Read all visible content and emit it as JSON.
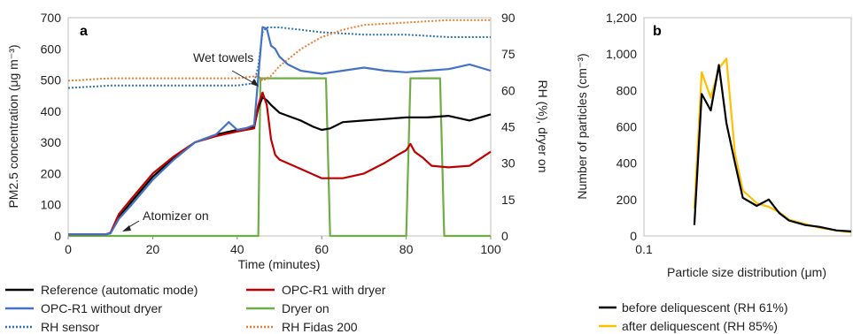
{
  "chart_data": [
    {
      "panel": "a",
      "type": "line",
      "xlabel": "Time (minutes)",
      "ylabel": "PM2.5 concentration (μg m⁻³)",
      "y2label": "RH (%), dryer on",
      "xlim": [
        0,
        100
      ],
      "ylim": [
        0,
        700
      ],
      "y2lim": [
        0,
        90
      ],
      "xticks": [
        "0",
        "20",
        "40",
        "60",
        "80",
        "100"
      ],
      "yticks": [
        "0",
        "100",
        "200",
        "300",
        "400",
        "500",
        "600",
        "700"
      ],
      "y2ticks": [
        "0",
        "15",
        "30",
        "45",
        "60",
        "75",
        "90"
      ],
      "annotations": [
        "Wet towels",
        "Atomizer on"
      ],
      "series": [
        {
          "name": "Reference (automatic mode)",
          "axis": "left",
          "color": "#000000",
          "style": "solid",
          "x": [
            0,
            9,
            10,
            12,
            15,
            20,
            25,
            30,
            35,
            40,
            44,
            45,
            46,
            47,
            48,
            50,
            52,
            55,
            58,
            60,
            62,
            65,
            70,
            75,
            80,
            85,
            90,
            95,
            100
          ],
          "y": [
            5,
            5,
            10,
            60,
            110,
            190,
            250,
            300,
            325,
            340,
            350,
            410,
            445,
            435,
            420,
            395,
            385,
            370,
            350,
            340,
            345,
            365,
            370,
            375,
            380,
            380,
            385,
            370,
            390
          ]
        },
        {
          "name": "OPC-R1 with dryer",
          "axis": "left",
          "color": "#c00000",
          "style": "solid",
          "x": [
            0,
            9,
            10,
            12,
            15,
            20,
            25,
            30,
            35,
            40,
            44,
            45,
            46,
            47,
            48,
            49,
            50,
            55,
            60,
            65,
            70,
            75,
            78,
            80,
            81,
            82,
            84,
            86,
            90,
            95,
            100
          ],
          "y": [
            5,
            5,
            10,
            70,
            120,
            200,
            255,
            300,
            320,
            335,
            345,
            420,
            460,
            420,
            310,
            260,
            245,
            215,
            185,
            185,
            200,
            235,
            260,
            275,
            295,
            270,
            250,
            225,
            220,
            225,
            270
          ]
        },
        {
          "name": "OPC-R1 without dryer",
          "axis": "left",
          "color": "#4472c4",
          "style": "solid",
          "x": [
            0,
            9,
            10,
            12,
            15,
            20,
            25,
            30,
            35,
            38,
            40,
            42,
            44,
            45,
            46,
            47,
            48,
            49,
            50,
            52,
            55,
            60,
            65,
            70,
            75,
            80,
            85,
            90,
            95,
            100
          ],
          "y": [
            5,
            5,
            8,
            55,
            100,
            180,
            245,
            300,
            325,
            365,
            340,
            345,
            355,
            510,
            670,
            665,
            610,
            600,
            575,
            550,
            530,
            520,
            530,
            540,
            530,
            525,
            530,
            535,
            550,
            530
          ]
        },
        {
          "name": "Dryer on",
          "axis": "right",
          "color": "#70ad47",
          "style": "solid",
          "x": [
            0,
            45,
            45.5,
            47,
            61,
            62,
            80,
            81,
            88,
            89,
            100
          ],
          "y": [
            0,
            0,
            65,
            65,
            65,
            0,
            0,
            65,
            65,
            0,
            0
          ]
        },
        {
          "name": "RH sensor",
          "axis": "right",
          "color": "#2e75b6",
          "style": "dotted",
          "x": [
            0,
            10,
            20,
            30,
            40,
            44,
            45,
            46,
            47,
            50,
            55,
            60,
            70,
            80,
            90,
            100
          ],
          "y": [
            61,
            62,
            62,
            62,
            62,
            63,
            70,
            84,
            86,
            86,
            85,
            84,
            83,
            83,
            82,
            82
          ]
        },
        {
          "name": "RH Fidas 200",
          "axis": "right",
          "color": "#ed7d31",
          "style": "dotted",
          "x": [
            0,
            10,
            20,
            30,
            40,
            45,
            46,
            48,
            50,
            55,
            60,
            65,
            70,
            80,
            90,
            100
          ],
          "y": [
            64,
            65,
            65,
            65,
            65,
            66,
            64,
            66,
            70,
            77,
            82,
            85,
            87,
            88,
            89,
            89
          ]
        }
      ]
    },
    {
      "panel": "b",
      "type": "line",
      "xlabel": "Particle size distribution (μm)",
      "ylabel": "Number of particles (cm⁻³)",
      "xscale": "log",
      "xlim": [
        0.1,
        1
      ],
      "ylim": [
        0,
        1200
      ],
      "xticks": [
        "0.1"
      ],
      "yticks": [
        "0",
        "200",
        "400",
        "600",
        "800",
        "1,000",
        "1,200"
      ],
      "series": [
        {
          "name": "before deliquescent (RH 61%)",
          "color": "#000000",
          "x": [
            0.175,
            0.19,
            0.21,
            0.23,
            0.25,
            0.275,
            0.3,
            0.35,
            0.4,
            0.45,
            0.5,
            0.6,
            0.7,
            0.85,
            1.0
          ],
          "y": [
            60,
            780,
            690,
            940,
            620,
            400,
            210,
            165,
            200,
            125,
            85,
            60,
            50,
            30,
            25
          ]
        },
        {
          "name": "after deliquescent (RH 85%)",
          "color": "#ffc000",
          "x": [
            0.175,
            0.19,
            0.21,
            0.23,
            0.25,
            0.275,
            0.3,
            0.35,
            0.4,
            0.45,
            0.5,
            0.6,
            0.7,
            0.85,
            1.0
          ],
          "y": [
            150,
            900,
            760,
            920,
            975,
            450,
            250,
            180,
            160,
            130,
            90,
            65,
            45,
            30,
            20
          ]
        }
      ]
    }
  ]
}
